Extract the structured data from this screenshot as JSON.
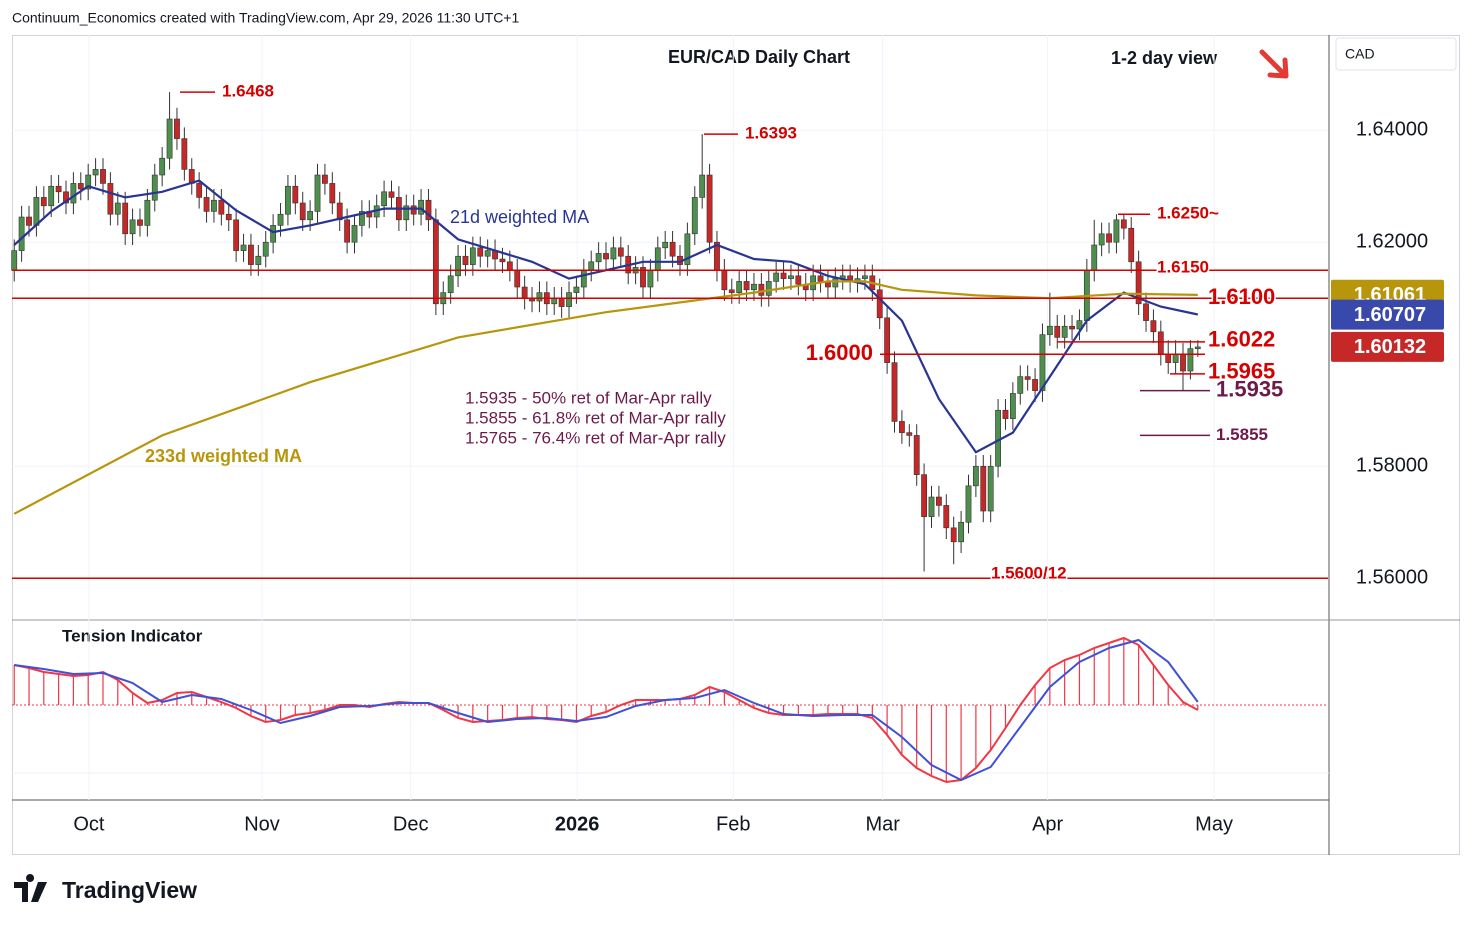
{
  "header": "Continuum_Economics created with TradingView.com, Apr 29, 2026 11:30 UTC+1",
  "logo": "TradingView",
  "chart_data": [
    {
      "type": "candlestick",
      "title": "EUR/CAD Daily Chart",
      "subtitle": "1-2 day view",
      "axis_label": "CAD",
      "up_color": "#4e8f4e",
      "down_color": "#c62828",
      "wick_color": "#333333",
      "open": [
        1.615,
        1.6185,
        1.6245,
        1.623,
        1.628,
        1.6265,
        1.63,
        1.629,
        1.627,
        1.6305,
        1.6295,
        1.632,
        1.633,
        1.6305,
        1.625,
        1.627,
        1.6215,
        1.624,
        1.623,
        1.6275,
        1.632,
        1.635,
        1.642,
        1.6385,
        1.633,
        1.6305,
        1.628,
        1.6255,
        1.6275,
        1.625,
        1.624,
        1.6185,
        1.6195,
        1.616,
        1.6175,
        1.62,
        1.623,
        1.625,
        1.63,
        1.627,
        1.624,
        1.6255,
        1.632,
        1.6305,
        1.627,
        1.624,
        1.62,
        1.623,
        1.6255,
        1.6245,
        1.6265,
        1.629,
        1.628,
        1.624,
        1.6265,
        1.625,
        1.6275,
        1.624,
        1.609,
        1.611,
        1.614,
        1.6175,
        1.616,
        1.619,
        1.6175,
        1.6185,
        1.617,
        1.6165,
        1.615,
        1.612,
        1.61,
        1.6095,
        1.611,
        1.609,
        1.61,
        1.6085,
        1.611,
        1.612,
        1.615,
        1.6165,
        1.618,
        1.617,
        1.619,
        1.6175,
        1.6145,
        1.6155,
        1.612,
        1.615,
        1.619,
        1.62,
        1.6175,
        1.616,
        1.6215,
        1.628,
        1.632,
        1.62,
        1.615,
        1.6115,
        1.611,
        1.613,
        1.6115,
        1.6125,
        1.6105,
        1.613,
        1.6145,
        1.6135,
        1.614,
        1.6125,
        1.6115,
        1.614,
        1.613,
        1.612,
        1.6135,
        1.614,
        1.613,
        1.6135,
        1.614,
        1.6115,
        1.6065,
        1.5985,
        1.588,
        1.586,
        1.5855,
        1.5785,
        1.571,
        1.5745,
        1.573,
        1.569,
        1.5665,
        1.57,
        1.5765,
        1.58,
        1.572,
        1.58,
        1.59,
        1.5885,
        1.593,
        1.596,
        1.5955,
        1.5935,
        1.6035,
        1.605,
        1.603,
        1.605,
        1.6045,
        1.606,
        1.615,
        1.6195,
        1.6215,
        1.62,
        1.624,
        1.6225,
        1.6165,
        1.609,
        1.606,
        1.604,
        1.6,
        1.5985,
        1.6,
        1.597,
        1.601
      ],
      "high": [
        1.6205,
        1.6265,
        1.6265,
        1.63,
        1.63,
        1.632,
        1.632,
        1.631,
        1.6325,
        1.6325,
        1.634,
        1.635,
        1.635,
        1.6325,
        1.629,
        1.629,
        1.626,
        1.626,
        1.6295,
        1.634,
        1.637,
        1.6468,
        1.644,
        1.6405,
        1.635,
        1.6325,
        1.63,
        1.6295,
        1.6295,
        1.627,
        1.626,
        1.6215,
        1.6215,
        1.6195,
        1.622,
        1.625,
        1.627,
        1.632,
        1.632,
        1.629,
        1.6275,
        1.634,
        1.634,
        1.6325,
        1.629,
        1.626,
        1.625,
        1.6275,
        1.6275,
        1.6285,
        1.631,
        1.631,
        1.63,
        1.6285,
        1.6285,
        1.6295,
        1.6295,
        1.626,
        1.613,
        1.616,
        1.6195,
        1.6195,
        1.621,
        1.621,
        1.6205,
        1.6205,
        1.619,
        1.6185,
        1.617,
        1.614,
        1.612,
        1.613,
        1.613,
        1.612,
        1.612,
        1.613,
        1.614,
        1.617,
        1.6185,
        1.62,
        1.62,
        1.621,
        1.621,
        1.6195,
        1.6175,
        1.6175,
        1.617,
        1.621,
        1.622,
        1.622,
        1.6195,
        1.6235,
        1.63,
        1.6393,
        1.634,
        1.622,
        1.617,
        1.6135,
        1.615,
        1.615,
        1.6145,
        1.6145,
        1.615,
        1.6165,
        1.6165,
        1.616,
        1.616,
        1.6145,
        1.616,
        1.616,
        1.615,
        1.6155,
        1.616,
        1.616,
        1.6155,
        1.616,
        1.616,
        1.6135,
        1.6085,
        1.6005,
        1.59,
        1.5875,
        1.5875,
        1.5805,
        1.5765,
        1.5765,
        1.575,
        1.571,
        1.572,
        1.5785,
        1.582,
        1.582,
        1.582,
        1.592,
        1.592,
        1.595,
        1.598,
        1.598,
        1.5975,
        1.6055,
        1.611,
        1.607,
        1.607,
        1.607,
        1.608,
        1.617,
        1.624,
        1.6235,
        1.6235,
        1.625,
        1.625,
        1.6245,
        1.6185,
        1.611,
        1.608,
        1.606,
        1.6025,
        1.6025,
        1.602,
        1.6025,
        1.6025
      ],
      "low": [
        1.613,
        1.6165,
        1.621,
        1.621,
        1.6245,
        1.6245,
        1.627,
        1.625,
        1.625,
        1.6275,
        1.6275,
        1.63,
        1.6285,
        1.623,
        1.623,
        1.6195,
        1.6195,
        1.621,
        1.621,
        1.6255,
        1.63,
        1.633,
        1.6365,
        1.631,
        1.6285,
        1.626,
        1.6235,
        1.6235,
        1.623,
        1.622,
        1.6165,
        1.6165,
        1.614,
        1.614,
        1.6155,
        1.618,
        1.621,
        1.623,
        1.625,
        1.622,
        1.622,
        1.6235,
        1.6285,
        1.625,
        1.622,
        1.618,
        1.618,
        1.621,
        1.6225,
        1.6225,
        1.6245,
        1.626,
        1.622,
        1.622,
        1.623,
        1.623,
        1.622,
        1.607,
        1.607,
        1.609,
        1.612,
        1.614,
        1.614,
        1.6155,
        1.6155,
        1.615,
        1.6145,
        1.613,
        1.61,
        1.608,
        1.6075,
        1.6075,
        1.607,
        1.607,
        1.6065,
        1.6065,
        1.609,
        1.61,
        1.613,
        1.6145,
        1.615,
        1.615,
        1.6155,
        1.6125,
        1.6125,
        1.61,
        1.61,
        1.613,
        1.617,
        1.6155,
        1.614,
        1.614,
        1.6195,
        1.626,
        1.618,
        1.613,
        1.6095,
        1.609,
        1.609,
        1.6095,
        1.6095,
        1.6085,
        1.6085,
        1.611,
        1.6115,
        1.6115,
        1.6105,
        1.6095,
        1.6095,
        1.611,
        1.61,
        1.61,
        1.6115,
        1.611,
        1.611,
        1.6115,
        1.6095,
        1.6045,
        1.5965,
        1.586,
        1.584,
        1.5835,
        1.5765,
        1.5612,
        1.569,
        1.571,
        1.567,
        1.5625,
        1.5645,
        1.568,
        1.5745,
        1.57,
        1.57,
        1.578,
        1.5865,
        1.5865,
        1.591,
        1.5935,
        1.5915,
        1.5915,
        1.6015,
        1.601,
        1.601,
        1.6025,
        1.6025,
        1.604,
        1.613,
        1.6175,
        1.618,
        1.618,
        1.6205,
        1.6145,
        1.607,
        1.604,
        1.602,
        1.598,
        1.5965,
        1.5965,
        1.5935,
        1.5955,
        1.5995
      ],
      "close": [
        1.6185,
        1.6245,
        1.623,
        1.628,
        1.6265,
        1.63,
        1.629,
        1.627,
        1.6305,
        1.6295,
        1.632,
        1.633,
        1.6305,
        1.625,
        1.627,
        1.6215,
        1.624,
        1.623,
        1.6275,
        1.632,
        1.635,
        1.642,
        1.6385,
        1.633,
        1.6305,
        1.628,
        1.6255,
        1.6275,
        1.625,
        1.624,
        1.6185,
        1.6195,
        1.616,
        1.6175,
        1.62,
        1.623,
        1.625,
        1.63,
        1.627,
        1.624,
        1.6255,
        1.632,
        1.6305,
        1.627,
        1.624,
        1.62,
        1.623,
        1.6255,
        1.6245,
        1.6265,
        1.629,
        1.628,
        1.624,
        1.6265,
        1.625,
        1.6275,
        1.624,
        1.609,
        1.611,
        1.614,
        1.6175,
        1.616,
        1.619,
        1.6175,
        1.6185,
        1.617,
        1.6165,
        1.615,
        1.612,
        1.61,
        1.6095,
        1.611,
        1.609,
        1.61,
        1.6085,
        1.611,
        1.612,
        1.615,
        1.6165,
        1.618,
        1.617,
        1.619,
        1.6175,
        1.6145,
        1.6155,
        1.612,
        1.615,
        1.619,
        1.62,
        1.6175,
        1.616,
        1.6215,
        1.628,
        1.632,
        1.62,
        1.615,
        1.6115,
        1.611,
        1.613,
        1.6115,
        1.6125,
        1.6105,
        1.613,
        1.6145,
        1.6135,
        1.614,
        1.6125,
        1.6115,
        1.614,
        1.613,
        1.612,
        1.6135,
        1.614,
        1.613,
        1.6135,
        1.614,
        1.6115,
        1.6065,
        1.5985,
        1.588,
        1.586,
        1.5855,
        1.5785,
        1.571,
        1.5745,
        1.573,
        1.569,
        1.5665,
        1.57,
        1.5765,
        1.58,
        1.572,
        1.58,
        1.59,
        1.5885,
        1.593,
        1.596,
        1.5955,
        1.5935,
        1.6035,
        1.605,
        1.603,
        1.605,
        1.6045,
        1.606,
        1.615,
        1.6195,
        1.6215,
        1.62,
        1.624,
        1.6225,
        1.6165,
        1.609,
        1.606,
        1.604,
        1.6,
        1.5985,
        1.6,
        1.597,
        1.601,
        1.6013
      ],
      "xlim": [
        -0.3,
        177.6
      ],
      "xticks": [
        {
          "value": 10.1,
          "label": "Oct"
        },
        {
          "value": 33.5,
          "label": "Nov"
        },
        {
          "value": 53.6,
          "label": "Dec"
        },
        {
          "value": 76.1,
          "label": "2026"
        },
        {
          "value": 97.2,
          "label": "Feb"
        },
        {
          "value": 117.4,
          "label": "Mar"
        },
        {
          "value": 139.7,
          "label": "Apr"
        },
        {
          "value": 162.2,
          "label": "May"
        }
      ],
      "ylim": [
        1.5529,
        1.657
      ],
      "yticks": [
        {
          "value": 1.64,
          "label": "1.64000"
        },
        {
          "value": 1.62,
          "label": "1.62000"
        },
        {
          "value": 1.58,
          "label": "1.58000"
        },
        {
          "value": 1.56,
          "label": "1.56000"
        }
      ],
      "grid": true,
      "series": [
        {
          "name": "21d weighted MA",
          "color": "#283593",
          "x": [
            0,
            5,
            10,
            15,
            20,
            25,
            30,
            35,
            40,
            45,
            50,
            55,
            60,
            65,
            70,
            75,
            80,
            85,
            90,
            95,
            100,
            105,
            110,
            115,
            120,
            125,
            130,
            135,
            140,
            145,
            150,
            155,
            160
          ],
          "values": [
            1.6195,
            1.6255,
            1.63,
            1.628,
            1.629,
            1.631,
            1.6257,
            1.6218,
            1.623,
            1.6245,
            1.626,
            1.626,
            1.6205,
            1.6185,
            1.6165,
            1.6135,
            1.615,
            1.6165,
            1.6165,
            1.6195,
            1.617,
            1.6165,
            1.614,
            1.6125,
            1.606,
            1.592,
            1.5825,
            1.586,
            1.596,
            1.606,
            1.611,
            1.6085,
            1.6071
          ]
        },
        {
          "name": "233d weighted MA",
          "color": "#b8960c",
          "x": [
            0,
            20,
            40,
            60,
            80,
            100,
            110,
            115,
            120,
            130,
            140,
            150,
            160
          ],
          "values": [
            1.5715,
            1.5855,
            1.595,
            1.603,
            1.6075,
            1.611,
            1.613,
            1.613,
            1.6115,
            1.6105,
            1.61,
            1.6108,
            1.6106
          ]
        }
      ],
      "levels": [
        {
          "value": 1.6468,
          "label": "1.6468",
          "color": "#d50000"
        },
        {
          "value": 1.6393,
          "label": "1.6393",
          "color": "#d50000"
        },
        {
          "value": 1.625,
          "label": "1.6250~",
          "color": "#d50000"
        },
        {
          "value": 1.615,
          "label": "1.6150",
          "color": "#d50000"
        },
        {
          "value": 1.61,
          "label": "1.6100",
          "color": "#d50000"
        },
        {
          "value": 1.6022,
          "label": "1.6022",
          "color": "#d50000"
        },
        {
          "value": 1.6,
          "label": "1.6000",
          "color": "#d50000"
        },
        {
          "value": 1.5965,
          "label": "1.5965",
          "color": "#d50000"
        },
        {
          "value": 1.5935,
          "label": "1.5935",
          "color": "#6d1a4a"
        },
        {
          "value": 1.5855,
          "label": "1.5855",
          "color": "#6d1a4a"
        },
        {
          "value": 1.56,
          "label": "1.5600/12",
          "color": "#d50000"
        }
      ],
      "price_badges": [
        {
          "value": 1.61061,
          "color": "#b8960c"
        },
        {
          "value": 1.60707,
          "color": "#3949ab"
        },
        {
          "value": 1.60132,
          "color": "#c62828"
        }
      ],
      "annotations": [
        "1.5935 - 50% ret of Mar-Apr rally",
        "1.5855 - 61.8% ret of Mar-Apr rally",
        "1.5765 - 76.4% ret of Mar-Apr rally"
      ]
    },
    {
      "type": "tension",
      "title": "Tension Indicator",
      "xlim": [
        -0.3,
        177.6
      ],
      "ylim": [
        -95,
        85
      ],
      "series": [
        {
          "color": "#f23645",
          "x": [
            0,
            2,
            4,
            6,
            8,
            10,
            12,
            14,
            16,
            18,
            20,
            22,
            24,
            26,
            28,
            30,
            32,
            34,
            36,
            38,
            40,
            42,
            44,
            46,
            48,
            50,
            52,
            54,
            56,
            58,
            60,
            62,
            64,
            66,
            68,
            70,
            72,
            74,
            76,
            78,
            80,
            82,
            84,
            86,
            88,
            90,
            92,
            94,
            96,
            98,
            100,
            102,
            104,
            106,
            108,
            110,
            112,
            114,
            116,
            118,
            120,
            122,
            124,
            126,
            128,
            130,
            132,
            134,
            136,
            138,
            140,
            142,
            144,
            146,
            148,
            150,
            152,
            154,
            156,
            158,
            160
          ],
          "values": [
            40,
            37,
            33,
            31,
            29,
            30,
            33,
            25,
            12,
            2,
            5,
            12,
            13,
            8,
            3,
            -3,
            -11,
            -17,
            -15,
            -10,
            -8,
            -5,
            0,
            0,
            -2,
            1,
            3,
            2,
            2,
            -5,
            -13,
            -17,
            -16,
            -15,
            -13,
            -12,
            -14,
            -15,
            -17,
            -11,
            -7,
            0,
            5,
            5,
            5,
            6,
            10,
            18,
            13,
            5,
            -3,
            -8,
            -10,
            -10,
            -10,
            -9,
            -9,
            -9,
            -13,
            -30,
            -50,
            -63,
            -71,
            -77,
            -75,
            -63,
            -45,
            -23,
            0,
            20,
            37,
            45,
            50,
            57,
            62,
            67,
            60,
            40,
            20,
            3,
            -5
          ]
        },
        {
          "color": "#3f51d5",
          "x": [
            0,
            4,
            8,
            12,
            16,
            20,
            24,
            28,
            32,
            36,
            40,
            44,
            48,
            52,
            56,
            60,
            64,
            68,
            72,
            76,
            80,
            84,
            88,
            92,
            96,
            100,
            104,
            108,
            112,
            116,
            120,
            124,
            128,
            132,
            136,
            140,
            144,
            148,
            152,
            156,
            160
          ],
          "values": [
            40,
            36,
            31,
            32,
            22,
            3,
            10,
            6,
            -5,
            -18,
            -11,
            -2,
            -1,
            2,
            2,
            -8,
            -17,
            -14,
            -13,
            -16,
            -12,
            -1,
            5,
            7,
            15,
            2,
            -9,
            -11,
            -10,
            -10,
            -32,
            -60,
            -75,
            -62,
            -22,
            18,
            43,
            57,
            65,
            43,
            3
          ]
        }
      ]
    }
  ]
}
